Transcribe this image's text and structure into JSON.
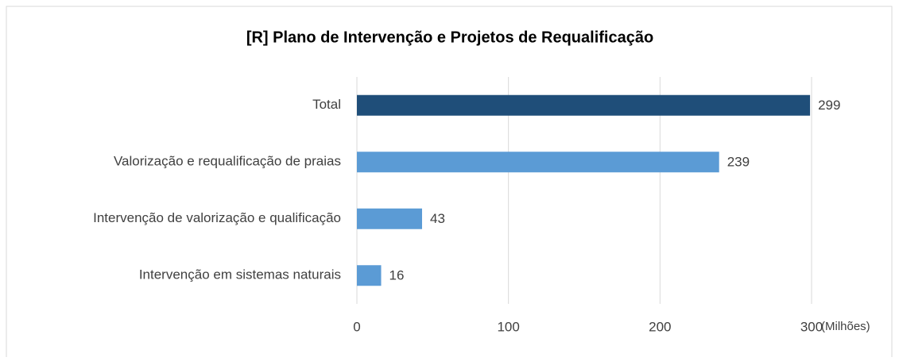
{
  "chart_data": {
    "type": "bar",
    "orientation": "horizontal",
    "title": "[R] Plano de Intervenção e Projetos de Requalificação",
    "categories": [
      "Total",
      "Valorização e requalificação de praias",
      "Intervenção de valorização e qualificação",
      "Intervenção em sistemas naturais"
    ],
    "values": [
      299,
      239,
      43,
      16
    ],
    "colors": [
      "#1f4e79",
      "#5b9bd5",
      "#5b9bd5",
      "#5b9bd5"
    ],
    "xlim": [
      0,
      300
    ],
    "xticks": [
      0,
      100,
      200,
      300
    ],
    "xlabel": "(Milhões)",
    "grid": true
  }
}
